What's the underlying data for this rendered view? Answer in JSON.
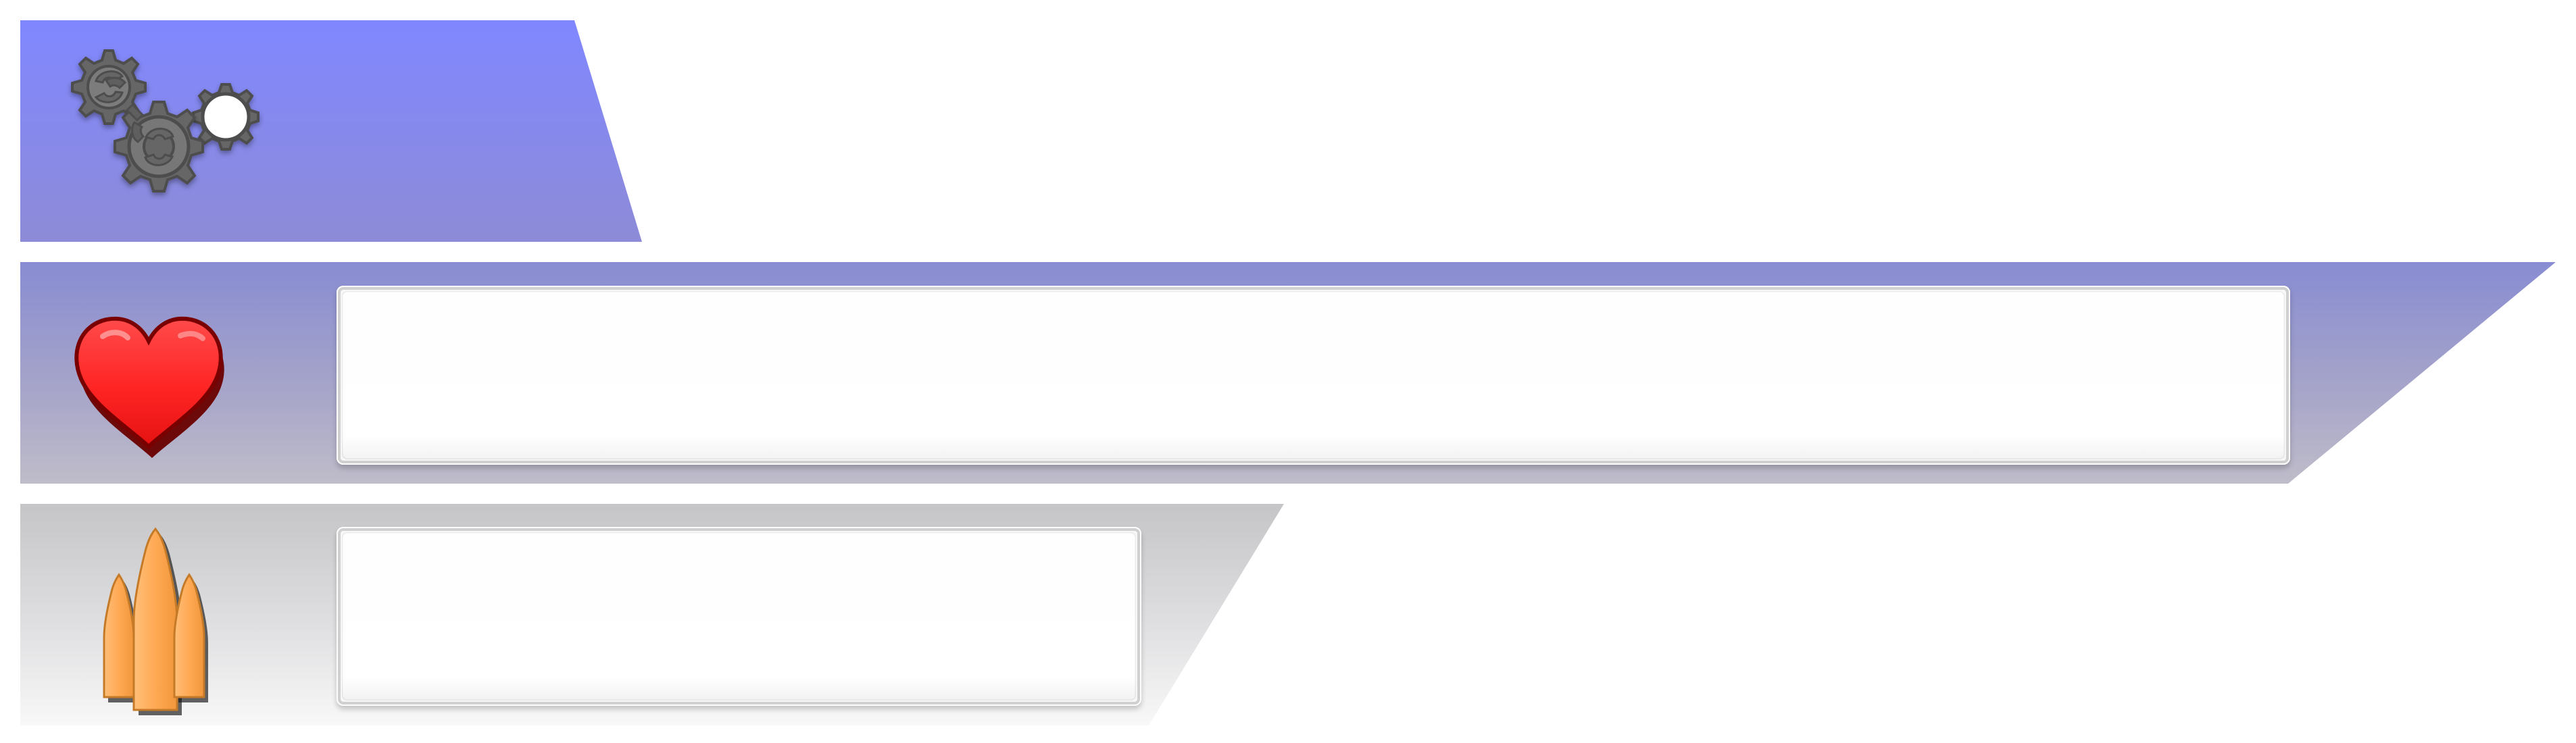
{
  "hud": {
    "settings": {
      "icon": "gears-icon",
      "colors": {
        "band_top": "#8087ff",
        "band_bottom": "#8d8bd7",
        "gear_fill": "#666666",
        "gear_stroke": "#4e4e4e"
      }
    },
    "health": {
      "icon": "heart-icon",
      "colors": {
        "band_top": "#888cd2",
        "band_bottom": "#bebcc9",
        "heart_fill": "#ff2b2b",
        "heart_shadow": "#7c0000"
      }
    },
    "ammo": {
      "icon": "bullet-icon",
      "count_shown": 3,
      "colors": {
        "band_top": "#c5c5c7",
        "band_bottom": "#f8f8f8",
        "bullet_fill": "#ffab57",
        "bullet_shadow": "#b86e1e"
      }
    }
  }
}
